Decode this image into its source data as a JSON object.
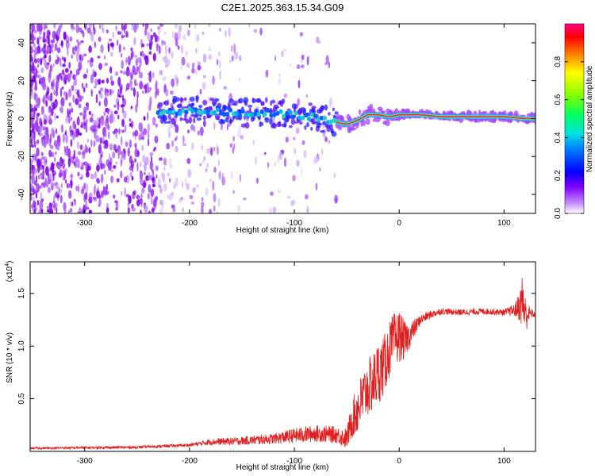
{
  "title": "C2E1.2025.363.15.34.G09",
  "colors": {
    "trace": "#e02020",
    "signal_band": "#18b8a8",
    "noise": "#7a00e0",
    "track_core": "#ff2040",
    "axis": "#000000"
  },
  "chart_data": [
    {
      "type": "heatmap",
      "name": "spectrogram",
      "xlabel": "Height of straight line (km)",
      "ylabel": "Frequency (Hz)",
      "xlim": [
        -352,
        130
      ],
      "ylim": [
        -50,
        50
      ],
      "xticks": [
        -300,
        -200,
        -100,
        0,
        100
      ],
      "yticks": [
        -40,
        -20,
        0,
        20,
        40
      ],
      "colorbar": {
        "label": "Normalized spectral amplitude",
        "range": [
          0,
          1
        ],
        "ticks": [
          "0.0",
          "0.2",
          "0.4",
          "0.6",
          "0.8"
        ],
        "tick_values": [
          0,
          0.2,
          0.4,
          0.6,
          0.8
        ],
        "colormap": [
          "#ffffff",
          "#8000ff",
          "#0000ff",
          "#00c0ff",
          "#00ff80",
          "#80ff00",
          "#ffff00",
          "#ff8000",
          "#ff0000",
          "#ff0080"
        ]
      },
      "signal_track": {
        "x": [
          -220,
          -200,
          -180,
          -160,
          -140,
          -120,
          -100,
          -80,
          -60,
          -50,
          -40,
          -30,
          -20,
          -10,
          0,
          20,
          40,
          60,
          80,
          100,
          120,
          130
        ],
        "freq": [
          4,
          4,
          4,
          3,
          3,
          3,
          2,
          1,
          -2,
          -3,
          -1,
          2,
          2,
          1,
          2,
          2,
          1,
          1,
          1,
          1,
          0,
          0
        ]
      }
    },
    {
      "type": "line",
      "name": "snr",
      "xlabel": "Height of straight line (km)",
      "ylabel": "SNR (10 * v/v)",
      "ylabel_scale": "(x10",
      "ylabel_scale_exp": "4",
      "ylabel_scale_close": ")",
      "xlim": [
        -352,
        130
      ],
      "ylim": [
        0,
        1.8
      ],
      "xticks": [
        -300,
        -200,
        -100,
        0,
        100
      ],
      "yticks": [
        0.5,
        1.0,
        1.5
      ],
      "ytick_labels": [
        "0.5",
        "1.0",
        "1.5"
      ],
      "envelope_x": [
        -352,
        -250,
        -200,
        -180,
        -150,
        -120,
        -100,
        -80,
        -60,
        -50,
        -45,
        -40,
        -35,
        -30,
        -25,
        -20,
        -15,
        -10,
        -5,
        0,
        5,
        10,
        20,
        30,
        40,
        60,
        80,
        100,
        110,
        115,
        118,
        120,
        125,
        130
      ],
      "envelope_y": [
        0.03,
        0.04,
        0.06,
        0.09,
        0.1,
        0.12,
        0.15,
        0.17,
        0.16,
        0.12,
        0.3,
        0.4,
        0.5,
        0.6,
        0.65,
        0.75,
        0.8,
        0.95,
        1.05,
        1.1,
        1.05,
        1.1,
        1.25,
        1.3,
        1.33,
        1.32,
        1.33,
        1.32,
        1.34,
        1.38,
        1.45,
        1.3,
        1.31,
        1.3
      ],
      "noise_amp_x": [
        -352,
        -200,
        -180,
        -120,
        -90,
        -60,
        -50,
        -40,
        -20,
        0,
        10,
        20,
        40,
        100,
        110,
        115,
        118,
        120,
        125,
        130
      ],
      "noise_amp_y": [
        0.01,
        0.015,
        0.03,
        0.05,
        0.08,
        0.08,
        0.1,
        0.25,
        0.3,
        0.25,
        0.12,
        0.05,
        0.03,
        0.03,
        0.06,
        0.15,
        0.3,
        0.2,
        0.05,
        0.03
      ]
    }
  ]
}
